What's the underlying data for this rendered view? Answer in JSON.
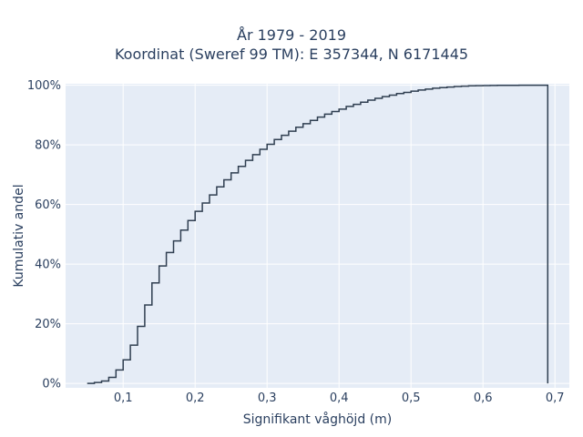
{
  "chart_data": {
    "type": "line",
    "subtype": "cumulative-step",
    "title_lines": [
      "År 1979 - 2019",
      "Koordinat (Sweref 99 TM): E 357344, N 6171445"
    ],
    "xlabel": "Signifikant våghöjd (m)",
    "ylabel": "Kumulativ andel",
    "x_ticks": [
      0.1,
      0.2,
      0.3,
      0.4,
      0.5,
      0.6,
      0.7
    ],
    "x_tick_labels": [
      "0,1",
      "0,2",
      "0,3",
      "0,4",
      "0,5",
      "0,6",
      "0,7"
    ],
    "y_ticks": [
      0,
      20,
      40,
      60,
      80,
      100
    ],
    "y_tick_labels": [
      "0%",
      "20%",
      "40%",
      "60%",
      "80%",
      "100%"
    ],
    "xlim": [
      0.02,
      0.72
    ],
    "ylim": [
      -1.5,
      100.5
    ],
    "grid": true,
    "colors": {
      "line": "#2f3e50",
      "plot_bg": "#e5ecf6",
      "grid": "#ffffff",
      "text": "#2a3f5f"
    },
    "series": [
      {
        "x": [
          0.05,
          0.06,
          0.07,
          0.08,
          0.09,
          0.1,
          0.11,
          0.12,
          0.13,
          0.14,
          0.15,
          0.16,
          0.17,
          0.18,
          0.19,
          0.2,
          0.21,
          0.22,
          0.23,
          0.24,
          0.25,
          0.26,
          0.27,
          0.28,
          0.29,
          0.3,
          0.31,
          0.32,
          0.33,
          0.34,
          0.35,
          0.36,
          0.37,
          0.38,
          0.39,
          0.4,
          0.41,
          0.42,
          0.43,
          0.44,
          0.45,
          0.46,
          0.47,
          0.48,
          0.49,
          0.5,
          0.51,
          0.52,
          0.53,
          0.54,
          0.55,
          0.56,
          0.57,
          0.58,
          0.59,
          0.6,
          0.61,
          0.62,
          0.63,
          0.64,
          0.65,
          0.66,
          0.67,
          0.68,
          0.69
        ],
        "y": [
          0.0,
          0.3,
          0.8,
          2.0,
          4.5,
          7.9,
          12.8,
          19.1,
          26.3,
          33.7,
          39.4,
          43.9,
          47.8,
          51.4,
          54.6,
          57.7,
          60.5,
          63.2,
          65.9,
          68.3,
          70.6,
          72.8,
          74.8,
          76.7,
          78.5,
          80.2,
          81.8,
          83.2,
          84.6,
          85.9,
          87.1,
          88.2,
          89.3,
          90.3,
          91.2,
          92.0,
          92.9,
          93.6,
          94.3,
          95.0,
          95.6,
          96.2,
          96.7,
          97.2,
          97.6,
          98.0,
          98.4,
          98.7,
          99.0,
          99.2,
          99.4,
          99.6,
          99.7,
          99.8,
          99.85,
          99.9,
          99.93,
          99.95,
          99.97,
          99.98,
          99.99,
          100.0,
          100.0,
          100.0,
          100.0
        ]
      }
    ]
  }
}
